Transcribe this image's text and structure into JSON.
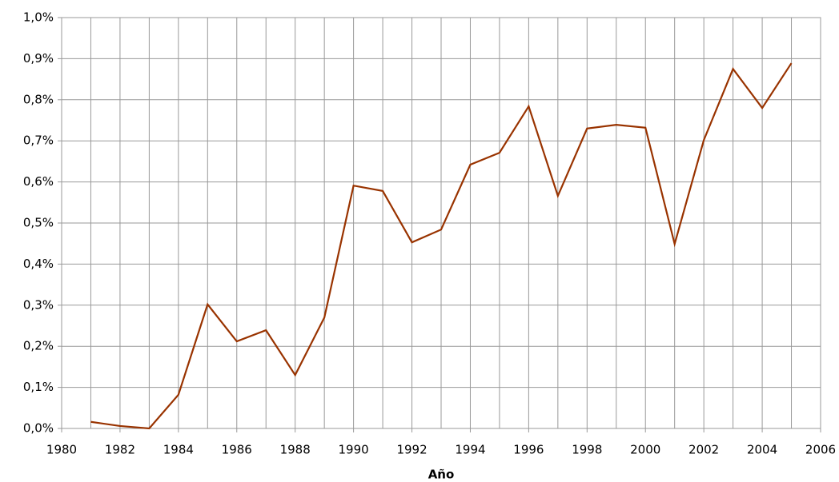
{
  "chart_data": {
    "type": "line",
    "x_label": "Año",
    "x": [
      1981,
      1982,
      1983,
      1984,
      1985,
      1986,
      1987,
      1988,
      1989,
      1990,
      1991,
      1992,
      1993,
      1994,
      1995,
      1996,
      1997,
      1998,
      1999,
      2000,
      2001,
      2002,
      2003,
      2004,
      2005
    ],
    "series": [
      {
        "color": "#993300",
        "values": [
          0.016,
          0.006,
          0.0,
          0.082,
          0.302,
          0.212,
          0.239,
          0.13,
          0.27,
          0.591,
          0.578,
          0.453,
          0.484,
          0.642,
          0.671,
          0.784,
          0.566,
          0.73,
          0.739,
          0.732,
          0.449,
          0.702,
          0.875,
          0.78,
          0.889
        ]
      }
    ],
    "xlim": [
      1980,
      2006
    ],
    "xticks": [
      1980,
      1982,
      1984,
      1986,
      1988,
      1990,
      1992,
      1994,
      1996,
      1998,
      2000,
      2002,
      2004,
      2006
    ],
    "xminorticks": [
      1981,
      1983,
      1985,
      1987,
      1989,
      1991,
      1993,
      1995,
      1997,
      1999,
      2001,
      2003,
      2005
    ],
    "ylim": [
      0,
      1.0
    ],
    "yticks": [
      {
        "value": 0,
        "label": "0,0%"
      },
      {
        "value": 0.1,
        "label": "0,1%"
      },
      {
        "value": 0.2,
        "label": "0,2%"
      },
      {
        "value": 0.3,
        "label": "0,3%"
      },
      {
        "value": 0.4,
        "label": "0,4%"
      },
      {
        "value": 0.5,
        "label": "0,5%"
      },
      {
        "value": 0.6,
        "label": "0,6%"
      },
      {
        "value": 0.7,
        "label": "0,7%"
      },
      {
        "value": 0.8,
        "label": "0,8%"
      },
      {
        "value": 0.9,
        "label": "0,9%"
      },
      {
        "value": 1.0,
        "label": "1,0%"
      }
    ],
    "grid": true
  }
}
